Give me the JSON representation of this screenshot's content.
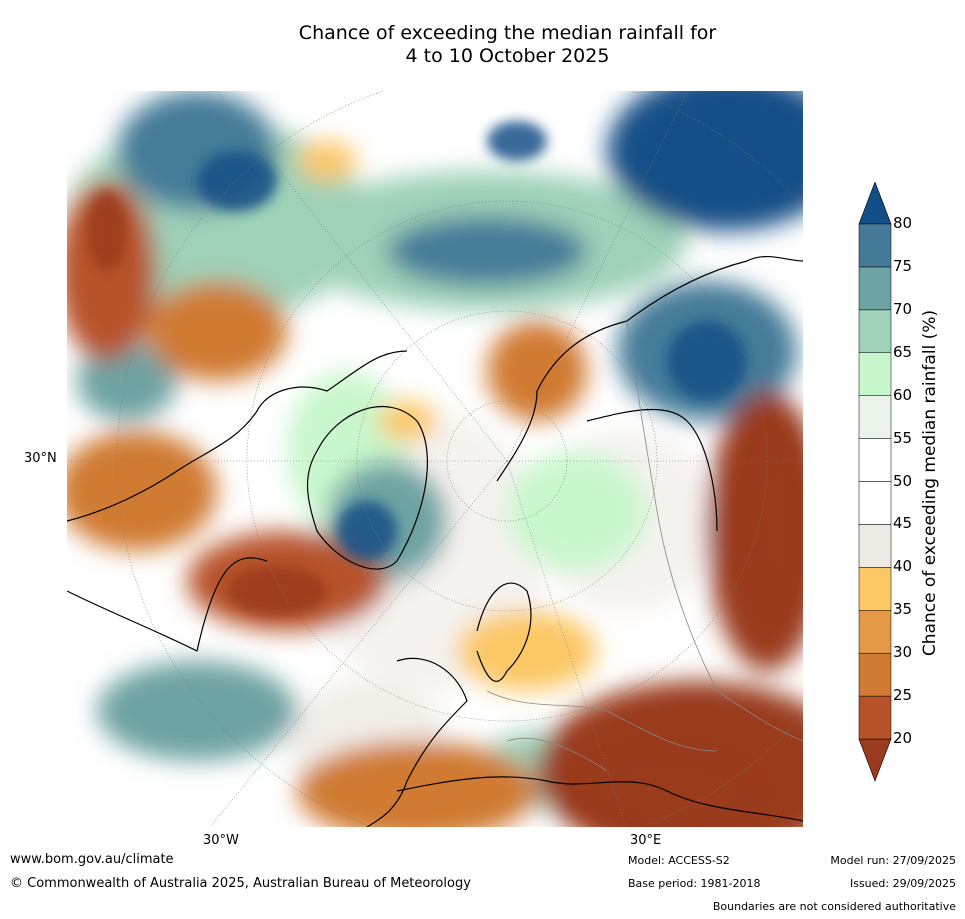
{
  "title": {
    "line1": "Chance of exceeding the median rainfall for",
    "line2": "4 to 10 October 2025"
  },
  "map": {
    "projection": "north polar stereographic",
    "lat_label": "30°N",
    "lon_labels": [
      "30°W",
      "30°E"
    ]
  },
  "colorbar": {
    "label": "Chance of exceeding median rainfall (%)",
    "ticks": [
      "20",
      "25",
      "30",
      "35",
      "40",
      "45",
      "50",
      "55",
      "60",
      "65",
      "70",
      "75",
      "80"
    ],
    "colors": [
      "#9a3a1f",
      "#b7522b",
      "#d07a33",
      "#e59846",
      "#fcc765",
      "#eeeae4",
      "#ffffff",
      "#ffffff",
      "#ebf4ea",
      "#c9f7cd",
      "#9ed1b8",
      "#6ea3a3",
      "#457b99",
      "#134f87"
    ],
    "extend": "both"
  },
  "footer": {
    "url": "www.bom.gov.au/climate",
    "copyright": "© Commonwealth of Australia 2025, Australian Bureau of Meteorology",
    "model": "Model: ACCESS-S2",
    "base_period": "Base period: 1981-2018",
    "model_run": "Model run: 27/09/2025",
    "issued": "Issued: 29/09/2025",
    "disclaimer": "Boundaries are not considered authoritative"
  }
}
